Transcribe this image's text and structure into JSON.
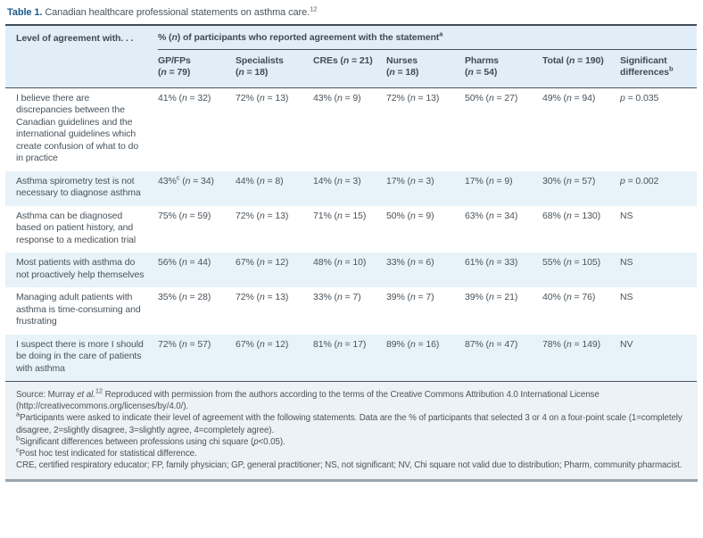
{
  "colors": {
    "title_accent": "#1d5a8a",
    "header_bg": "#e2eef7",
    "row_alt_bg": "#e7f2f9",
    "footnote_bg": "#edf2f6",
    "rule_dark": "#4a545e",
    "rule_bottom": "#9aa5af"
  },
  "title": {
    "label": "Table 1.",
    "text": "Canadian healthcare professional statements on asthma care.",
    "sup": "12"
  },
  "table": {
    "col1_header": "Level of agreement with. . .",
    "span_header": {
      "text": "% (n) of participants who reported agreement with the statement",
      "sup": "a"
    },
    "columns": [
      {
        "line1": "GP/FPs",
        "line2": "(n = 79)",
        "sup": ""
      },
      {
        "line1": "Specialists",
        "line2": "(n = 18)",
        "sup": ""
      },
      {
        "line1": "CREs (n = 21)",
        "line2": "",
        "sup": ""
      },
      {
        "line1": "Nurses",
        "line2": "(n = 18)",
        "sup": ""
      },
      {
        "line1": "Pharms",
        "line2": "(n = 54)",
        "sup": ""
      },
      {
        "line1": "Total (n = 190)",
        "line2": "",
        "sup": ""
      },
      {
        "line1": "Significant",
        "line2": "differences",
        "sup": "b"
      }
    ],
    "rows": [
      {
        "statement": "I believe there are discrepancies between the Canadian guidelines and the international guidelines which create confusion of what to do in practice",
        "cells": [
          {
            "pct": "41%",
            "sup": "",
            "n": "(n = 32)"
          },
          {
            "pct": "72%",
            "sup": "",
            "n": "(n = 13)"
          },
          {
            "pct": "43%",
            "sup": "",
            "n": "(n = 9)"
          },
          {
            "pct": "72%",
            "sup": "",
            "n": "(n = 13)"
          },
          {
            "pct": "50%",
            "sup": "",
            "n": "(n = 27)"
          },
          {
            "pct": "49%",
            "sup": "",
            "n": "(n = 94)"
          }
        ],
        "sig": "p = 0.035"
      },
      {
        "statement": "Asthma spirometry test is not necessary to diagnose asthma",
        "cells": [
          {
            "pct": "43%",
            "sup": "c",
            "n": "(n = 34)"
          },
          {
            "pct": "44%",
            "sup": "",
            "n": "(n = 8)"
          },
          {
            "pct": "14%",
            "sup": "",
            "n": "(n = 3)"
          },
          {
            "pct": "17%",
            "sup": "",
            "n": "(n = 3)"
          },
          {
            "pct": "17%",
            "sup": "",
            "n": "(n = 9)"
          },
          {
            "pct": "30%",
            "sup": "",
            "n": "(n = 57)"
          }
        ],
        "sig": "p = 0.002"
      },
      {
        "statement": "Asthma can be diagnosed based on patient history, and response to a medication trial",
        "cells": [
          {
            "pct": "75%",
            "sup": "",
            "n": "(n = 59)"
          },
          {
            "pct": "72%",
            "sup": "",
            "n": "(n = 13)"
          },
          {
            "pct": "71%",
            "sup": "",
            "n": "(n = 15)"
          },
          {
            "pct": "50%",
            "sup": "",
            "n": "(n = 9)"
          },
          {
            "pct": "63%",
            "sup": "",
            "n": "(n = 34)"
          },
          {
            "pct": "68%",
            "sup": "",
            "n": "(n = 130)"
          }
        ],
        "sig": "NS"
      },
      {
        "statement": "Most patients with asthma do not proactively help themselves",
        "cells": [
          {
            "pct": "56%",
            "sup": "",
            "n": "(n = 44)"
          },
          {
            "pct": "67%",
            "sup": "",
            "n": "(n = 12)"
          },
          {
            "pct": "48%",
            "sup": "",
            "n": "(n = 10)"
          },
          {
            "pct": "33%",
            "sup": "",
            "n": "(n = 6)"
          },
          {
            "pct": "61%",
            "sup": "",
            "n": "(n = 33)"
          },
          {
            "pct": "55%",
            "sup": "",
            "n": "(n = 105)"
          }
        ],
        "sig": "NS"
      },
      {
        "statement": "Managing adult patients with asthma is time-consuming and frustrating",
        "cells": [
          {
            "pct": "35%",
            "sup": "",
            "n": "(n = 28)"
          },
          {
            "pct": "72%",
            "sup": "",
            "n": "(n = 13)"
          },
          {
            "pct": "33%",
            "sup": "",
            "n": "(n = 7)"
          },
          {
            "pct": "39%",
            "sup": "",
            "n": "(n = 7)"
          },
          {
            "pct": "39%",
            "sup": "",
            "n": "(n = 21)"
          },
          {
            "pct": "40%",
            "sup": "",
            "n": "(n = 76)"
          }
        ],
        "sig": "NS"
      },
      {
        "statement": "I suspect there is more I should be doing in the care of patients with asthma",
        "cells": [
          {
            "pct": "72%",
            "sup": "",
            "n": "(n = 57)"
          },
          {
            "pct": "67%",
            "sup": "",
            "n": "(n = 12)"
          },
          {
            "pct": "81%",
            "sup": "",
            "n": "(n = 17)"
          },
          {
            "pct": "89%",
            "sup": "",
            "n": "(n = 16)"
          },
          {
            "pct": "87%",
            "sup": "",
            "n": "(n = 47)"
          },
          {
            "pct": "78%",
            "sup": "",
            "n": "(n = 149)"
          }
        ],
        "sig": "NV"
      }
    ]
  },
  "footnotes": {
    "source": {
      "pre": "Source: Murray ",
      "etal": "et al.",
      "sup": "12",
      "post": " Reproduced with permission from the authors according to the terms of the Creative Commons Attribution 4.0 International License (http://creativecommons.org/licenses/by/4.0/)."
    },
    "notes": [
      {
        "sup": "a",
        "text": "Participants were asked to indicate their level of agreement with the following statements. Data are the % of participants that selected 3 or 4 on a four-point scale (1=completely disagree, 2=slightly disagree, 3=slightly agree, 4=completely agree)."
      },
      {
        "sup": "b",
        "text": "Significant differences between professions using chi square (p<0.05)."
      },
      {
        "sup": "c",
        "text": "Post hoc test indicated for statistical difference."
      },
      {
        "sup": "",
        "text": "CRE, certified respiratory educator; FP, family physician; GP, general practitioner; NS, not significant; NV, Chi square not valid due to distribution; Pharm, community pharmacist."
      }
    ]
  }
}
